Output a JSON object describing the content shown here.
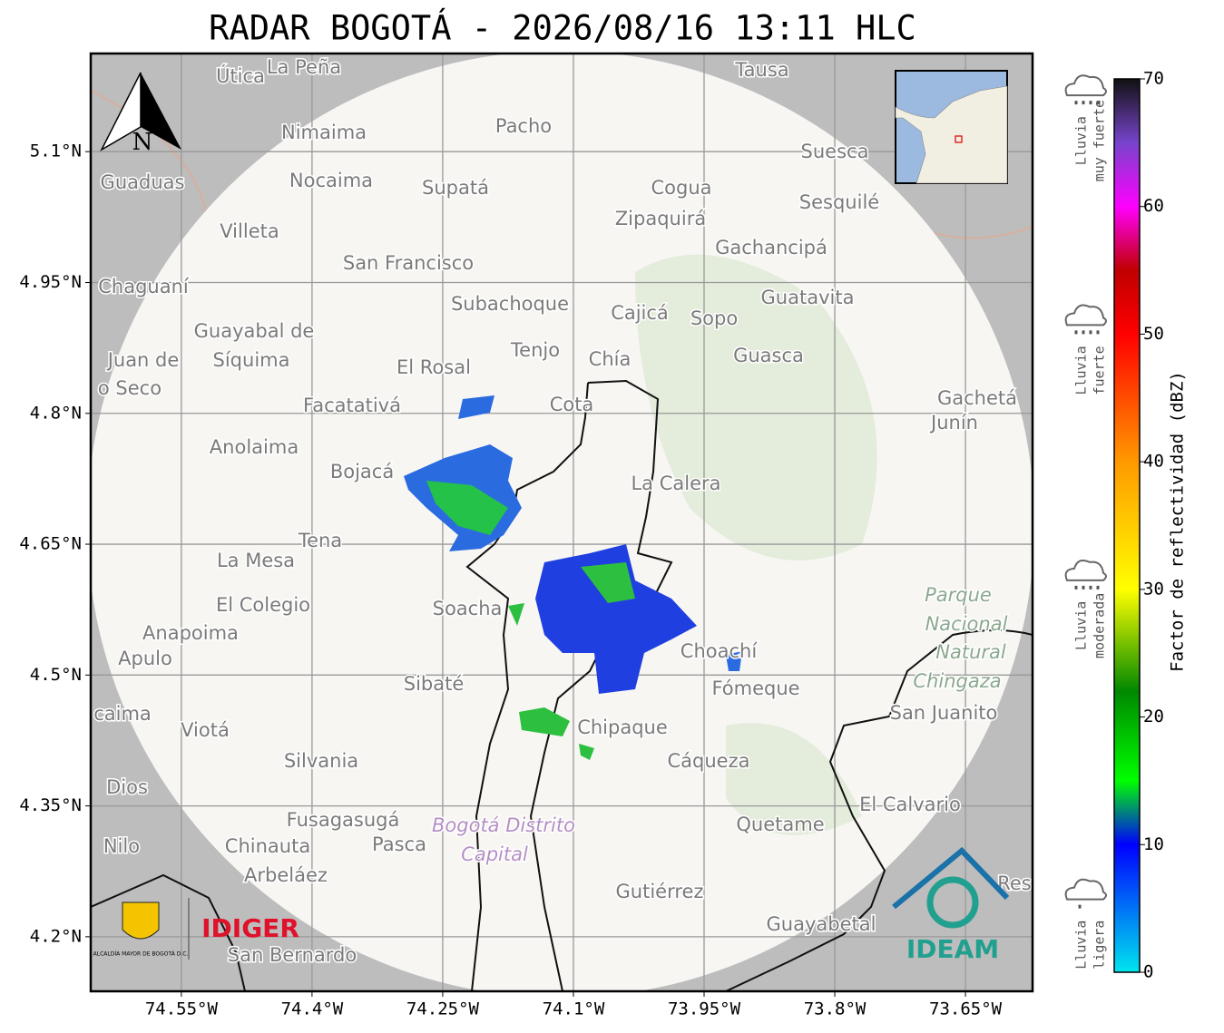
{
  "title": "RADAR BOGOTÁ - 2026/08/16 13:11 HLC",
  "map": {
    "lonlim": [
      -74.654,
      -73.573
    ],
    "latlim": [
      4.1375,
      5.2125
    ],
    "lon_ticks": [
      {
        "value": -74.55,
        "label": "74.55°W"
      },
      {
        "value": -74.4,
        "label": "74.4°W"
      },
      {
        "value": -74.25,
        "label": "74.25°W"
      },
      {
        "value": -74.1,
        "label": "74.1°W"
      },
      {
        "value": -73.95,
        "label": "73.95°W"
      },
      {
        "value": -73.8,
        "label": "73.8°W"
      },
      {
        "value": -73.65,
        "label": "73.65°W"
      }
    ],
    "lat_ticks": [
      {
        "value": 5.1,
        "label": "5.1°N"
      },
      {
        "value": 4.95,
        "label": "4.95°N"
      },
      {
        "value": 4.8,
        "label": "4.8°N"
      },
      {
        "value": 4.65,
        "label": "4.65°N"
      },
      {
        "value": 4.5,
        "label": "4.5°N"
      },
      {
        "value": 4.35,
        "label": "4.35°N"
      },
      {
        "value": 4.2,
        "label": "4.2°N"
      }
    ],
    "north": "N",
    "places": [
      "Útica",
      "La Peña",
      "Tausa",
      "Pacho",
      "Nimaima",
      "Suesca",
      "Guaduas",
      "Nocaima",
      "Supatá",
      "Cogua",
      "Sesquilé",
      "Zipaquirá",
      "Villeta",
      "Gachancipá",
      "San Francisco",
      "Chaguaní",
      "Guatavita",
      "Subachoque",
      "Cajicá",
      "Sopo",
      "Guayabal de",
      "Tenjo",
      "Chía",
      "Guasca",
      "Juan de",
      "Síquima",
      "El Rosal",
      "o Seco",
      "Facatativá",
      "Cota",
      "Gachetá",
      "Junín",
      "Anolaima",
      "Bojacá",
      "La Calera",
      "Tena",
      "La Mesa",
      "Parque",
      "El Colegio",
      "Soacha",
      "Nacional",
      "Anapoima",
      "Apulo",
      "Choachí",
      "Natural",
      "Chingaza",
      "Sibaté",
      "Fómeque",
      "San Juanito",
      "caima",
      "Viotá",
      "Chipaque",
      "Silvania",
      "Cáqueza",
      "Dios",
      "El Calvario",
      "Fusagasugá",
      "Bogotá Distrito",
      "Quetame",
      "Nilo",
      "Chinauta",
      "Pasca",
      "Capital",
      "Arbeláez",
      "Gutiérrez",
      "Res",
      "Guayabetal",
      "San Bernardo"
    ],
    "logos": {
      "alcaldia": "ALCALDÍA MAYOR DE BOGOTÁ D.C.",
      "idiger": "IDIGER",
      "ideam": "IDEAM"
    }
  },
  "colorbar": {
    "label": "Factor de reflectividad (dBZ)",
    "lim": [
      0,
      70
    ],
    "ticks": [
      0,
      10,
      20,
      30,
      40,
      50,
      60,
      70
    ],
    "stops": [
      {
        "value": 0,
        "color": "#00e5ee"
      },
      {
        "value": 10,
        "color": "#0000ff"
      },
      {
        "value": 15,
        "color": "#00ff00"
      },
      {
        "value": 22,
        "color": "#008800"
      },
      {
        "value": 30,
        "color": "#ffff00"
      },
      {
        "value": 40,
        "color": "#ff9900"
      },
      {
        "value": 50,
        "color": "#ff0000"
      },
      {
        "value": 55,
        "color": "#c00000"
      },
      {
        "value": 60,
        "color": "#ff00ff"
      },
      {
        "value": 65,
        "color": "#7744cc"
      },
      {
        "value": 70,
        "color": "#111111"
      }
    ],
    "categories": [
      {
        "value": 5,
        "lines": [
          "Lluvia",
          "ligera"
        ]
      },
      {
        "value": 30,
        "lines": [
          "Lluvia",
          "moderada"
        ]
      },
      {
        "value": 50,
        "lines": [
          "Lluvia",
          "fuerte"
        ]
      },
      {
        "value": 68,
        "lines": [
          "Lluvia",
          "muy fuerte"
        ]
      }
    ]
  }
}
